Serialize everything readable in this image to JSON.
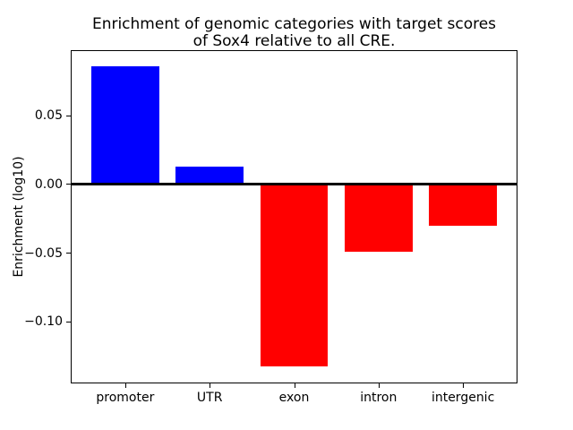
{
  "figure": {
    "background": "#ffffff",
    "text_color": "#000000"
  },
  "chart_data": {
    "type": "bar",
    "title": "Enrichment of genomic categories with target scores\nof Sox4 relative to all CRE.",
    "xlabel": "",
    "ylabel": "Enrichment (log10)",
    "categories": [
      "promoter",
      "UTR",
      "exon",
      "intron",
      "intergenic"
    ],
    "values": [
      0.086,
      0.013,
      -0.132,
      -0.049,
      -0.03
    ],
    "bar_colors": [
      "#0000ff",
      "#0000ff",
      "#ff0000",
      "#ff0000",
      "#ff0000"
    ],
    "positive_color": "#0000ff",
    "negative_color": "#ff0000",
    "ylim": [
      -0.144,
      0.097
    ],
    "yticks": [
      0.05,
      0.0,
      -0.05,
      -0.1
    ],
    "ytick_labels": [
      "0.05",
      "0.00",
      "−0.05",
      "−0.10"
    ],
    "bar_width_fraction": 0.8,
    "x_padding": 0.635,
    "zero_line_color": "#000000",
    "grid": false,
    "legend": "none"
  }
}
